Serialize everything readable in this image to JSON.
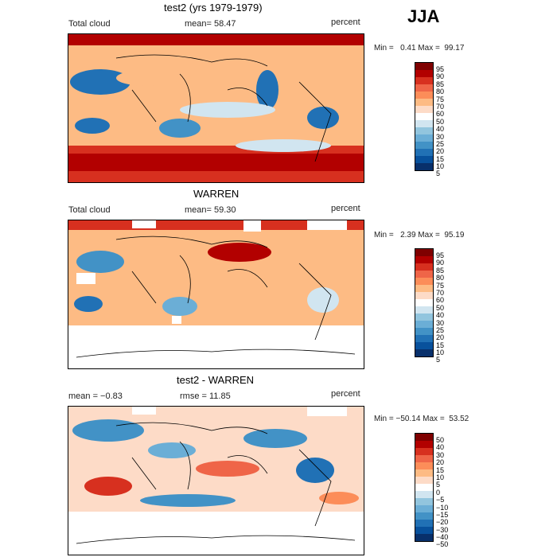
{
  "season": "JJA",
  "panels": [
    {
      "title": "test2 (yrs 1979-1979)",
      "left_label": "Total cloud",
      "mid_label": "mean=  58.47",
      "right_label": "percent",
      "minmax": "Min =   0.41 Max =  99.17",
      "levels": [
        "95",
        "90",
        "85",
        "80",
        "75",
        "70",
        "60",
        "50",
        "40",
        "30",
        "25",
        "20",
        "15",
        "10",
        "5"
      ],
      "colors": [
        "#7f0000",
        "#b20000",
        "#d7301f",
        "#ef6548",
        "#fc8d59",
        "#fdbb84",
        "#fddbc7",
        "#ffffff",
        "#d1e5f0",
        "#92c5de",
        "#6baed6",
        "#4292c6",
        "#2171b5",
        "#08519c",
        "#08306b"
      ]
    },
    {
      "title": "WARREN",
      "left_label": "Total cloud",
      "mid_label": "mean=  59.30",
      "right_label": "percent",
      "minmax": "Min =   2.39 Max =  95.19",
      "levels": [
        "95",
        "90",
        "85",
        "80",
        "75",
        "70",
        "60",
        "50",
        "40",
        "30",
        "25",
        "20",
        "15",
        "10",
        "5"
      ],
      "colors": [
        "#7f0000",
        "#b20000",
        "#d7301f",
        "#ef6548",
        "#fc8d59",
        "#fdbb84",
        "#fddbc7",
        "#ffffff",
        "#d1e5f0",
        "#92c5de",
        "#6baed6",
        "#4292c6",
        "#2171b5",
        "#08519c",
        "#08306b"
      ]
    },
    {
      "title": "test2 - WARREN",
      "left_label": "mean =  −0.83",
      "mid_label": "rmse =  11.85",
      "right_label": "percent",
      "minmax": "Min = −50.14 Max =  53.52",
      "levels": [
        "50",
        "40",
        "30",
        "20",
        "15",
        "10",
        "5",
        "0",
        "−5",
        "−10",
        "−15",
        "−20",
        "−30",
        "−40",
        "−50"
      ],
      "colors": [
        "#7f0000",
        "#b20000",
        "#d7301f",
        "#ef6548",
        "#fc8d59",
        "#fdbb84",
        "#fddbc7",
        "#ffffff",
        "#d1e5f0",
        "#92c5de",
        "#6baed6",
        "#4292c6",
        "#2171b5",
        "#08519c",
        "#08306b"
      ]
    }
  ]
}
